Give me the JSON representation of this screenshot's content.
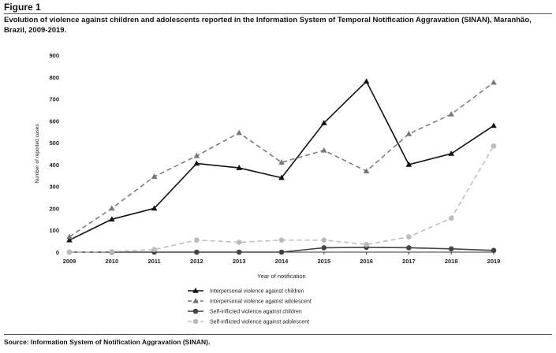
{
  "figure": {
    "label": "Figure 1",
    "caption": "Evolution of violence against children and adolescents reported in the Information System of Temporal Notification Aggravation (SINAN), Maranhão, Brazil, 2009-2019.",
    "source": "Source: Information System of Notification Aggravation (SINAN)."
  },
  "chart_data": {
    "type": "line",
    "title": "",
    "xlabel": "Year of notification",
    "ylabel": "Number of reported cases",
    "x": [
      "2009",
      "2010",
      "2011",
      "2012",
      "2013",
      "2014",
      "2015",
      "2016",
      "2017",
      "2018",
      "2019"
    ],
    "ylim": [
      0,
      900
    ],
    "yticks": [
      0,
      100,
      200,
      300,
      400,
      500,
      600,
      700,
      800,
      900
    ],
    "grid": false,
    "legend_position": "bottom",
    "series": [
      {
        "name": "Interpersonal violence against children",
        "color": "#111111",
        "dash": "solid",
        "marker": "triangle",
        "values": [
          55,
          150,
          200,
          405,
          385,
          340,
          590,
          780,
          400,
          450,
          578
        ]
      },
      {
        "name": "Interpersonal violence against adolescent",
        "color": "#777777",
        "dash": "dashed",
        "marker": "triangle",
        "values": [
          70,
          200,
          345,
          440,
          545,
          410,
          465,
          370,
          540,
          630,
          775
        ]
      },
      {
        "name": "Self-inflicted violence against children",
        "color": "#444444",
        "dash": "solid",
        "marker": "circle",
        "values": [
          0,
          0,
          0,
          0,
          0,
          0,
          20,
          22,
          20,
          15,
          8
        ]
      },
      {
        "name": "Self-inflicted violence against adolescent",
        "color": "#bbbbbb",
        "dash": "dashed",
        "marker": "circle",
        "values": [
          0,
          2,
          12,
          55,
          45,
          55,
          55,
          35,
          70,
          155,
          485
        ]
      }
    ]
  }
}
